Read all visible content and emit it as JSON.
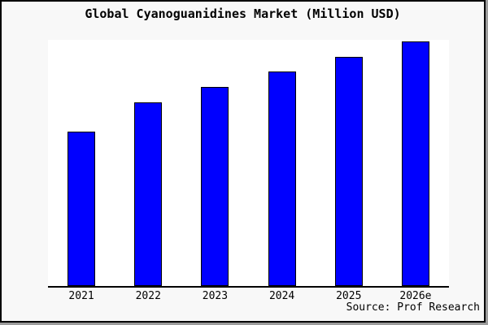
{
  "window": {
    "background": "#f8f8f8",
    "border_color": "#000000",
    "shadow_color": "#9c9c9c",
    "plot_background": "#ffffff"
  },
  "title": "Global Cyanoguanidines Market (Million USD)",
  "source": "Source: Prof Research",
  "chart_data": {
    "type": "bar",
    "title": "Global Cyanoguanidines Market (Million USD)",
    "categories": [
      "2021",
      "2022",
      "2023",
      "2024",
      "2025",
      "2026e"
    ],
    "values": [
      63,
      75,
      81.3,
      87.7,
      93.7,
      100
    ],
    "values_note": "Y-axis has no tick labels; values are relative market-size index estimated from bar heights, normalized so 2026e = 100",
    "ylim": [
      0,
      100.5
    ],
    "xlabel": "",
    "ylabel": "",
    "grid": false,
    "legend": null,
    "bar_color": "#0000ff",
    "bar_border_color": "#000000",
    "axis_color": "#000000",
    "source_label": "Source: Prof Research"
  }
}
